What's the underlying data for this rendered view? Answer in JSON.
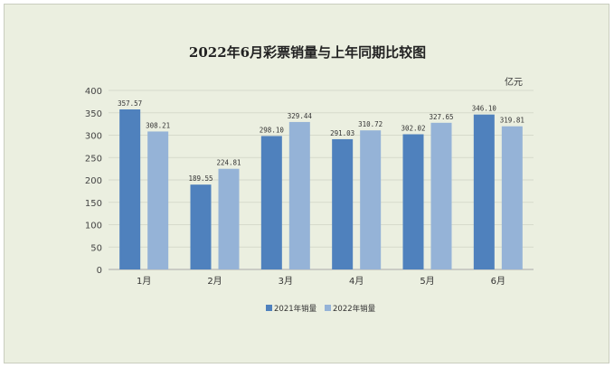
{
  "chart_data": {
    "type": "bar",
    "title": "2022年6月彩票销量与上年同期比较图",
    "unit": "亿元",
    "categories": [
      "1月",
      "2月",
      "3月",
      "4月",
      "5月",
      "6月"
    ],
    "series": [
      {
        "name": "2021年销量",
        "color": "#4f81bd",
        "values": [
          357.57,
          189.55,
          298.1,
          291.03,
          302.02,
          346.1
        ]
      },
      {
        "name": "2022年销量",
        "color": "#95b3d7",
        "values": [
          308.21,
          224.81,
          329.44,
          310.72,
          327.65,
          319.81
        ]
      }
    ],
    "ylim": [
      0,
      400
    ],
    "yticks": [
      0,
      50,
      100,
      150,
      200,
      250,
      300,
      350,
      400
    ],
    "grid": true,
    "legend": "bottom"
  }
}
